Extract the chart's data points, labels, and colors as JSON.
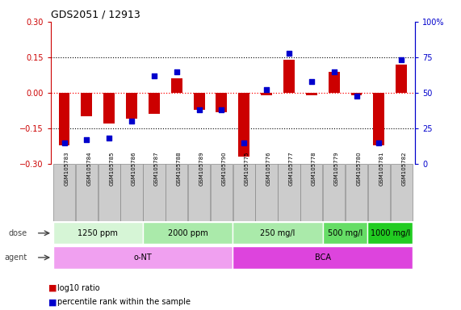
{
  "title": "GDS2051 / 12913",
  "samples": [
    "GSM105783",
    "GSM105784",
    "GSM105785",
    "GSM105786",
    "GSM105787",
    "GSM105788",
    "GSM105789",
    "GSM105790",
    "GSM105775",
    "GSM105776",
    "GSM105777",
    "GSM105778",
    "GSM105779",
    "GSM105780",
    "GSM105781",
    "GSM105782"
  ],
  "log10_ratio": [
    -0.22,
    -0.1,
    -0.13,
    -0.11,
    -0.09,
    0.06,
    -0.07,
    -0.08,
    -0.27,
    -0.01,
    0.14,
    -0.01,
    0.09,
    -0.01,
    -0.22,
    0.12
  ],
  "percentile_rank": [
    15,
    17,
    18,
    30,
    62,
    65,
    38,
    38,
    15,
    52,
    78,
    58,
    65,
    48,
    15,
    73
  ],
  "dose_groups": [
    {
      "label": "1250 ppm",
      "start": 0,
      "end": 4,
      "color": "#d6f5d6"
    },
    {
      "label": "2000 ppm",
      "start": 4,
      "end": 8,
      "color": "#aaeaaa"
    },
    {
      "label": "250 mg/l",
      "start": 8,
      "end": 12,
      "color": "#aaeaaa"
    },
    {
      "label": "500 mg/l",
      "start": 12,
      "end": 14,
      "color": "#66dd66"
    },
    {
      "label": "1000 mg/l",
      "start": 14,
      "end": 16,
      "color": "#22cc22"
    }
  ],
  "agent_groups": [
    {
      "label": "o-NT",
      "start": 0,
      "end": 8,
      "color": "#f0a0f0"
    },
    {
      "label": "BCA",
      "start": 8,
      "end": 16,
      "color": "#dd44dd"
    }
  ],
  "bar_color": "#cc0000",
  "dot_color": "#0000cc",
  "ylim": [
    -0.3,
    0.3
  ],
  "yticks_left": [
    -0.3,
    -0.15,
    0.0,
    0.15,
    0.3
  ],
  "yticks_right": [
    0,
    25,
    50,
    75,
    100
  ],
  "hlines_dotted": [
    -0.15,
    0.15
  ],
  "hline_zero": 0.0,
  "bar_width": 0.5,
  "dot_size": 20,
  "ylabel_left_color": "#cc0000",
  "ylabel_right_color": "#0000cc",
  "legend_red_label": "log10 ratio",
  "legend_blue_label": "percentile rank within the sample",
  "background_color": "#ffffff",
  "sample_box_color": "#cccccc",
  "sample_box_edge": "#888888",
  "title_fontsize": 9,
  "tick_fontsize": 7,
  "sample_fontsize": 5,
  "dose_fontsize": 7,
  "agent_fontsize": 7,
  "legend_fontsize": 7
}
